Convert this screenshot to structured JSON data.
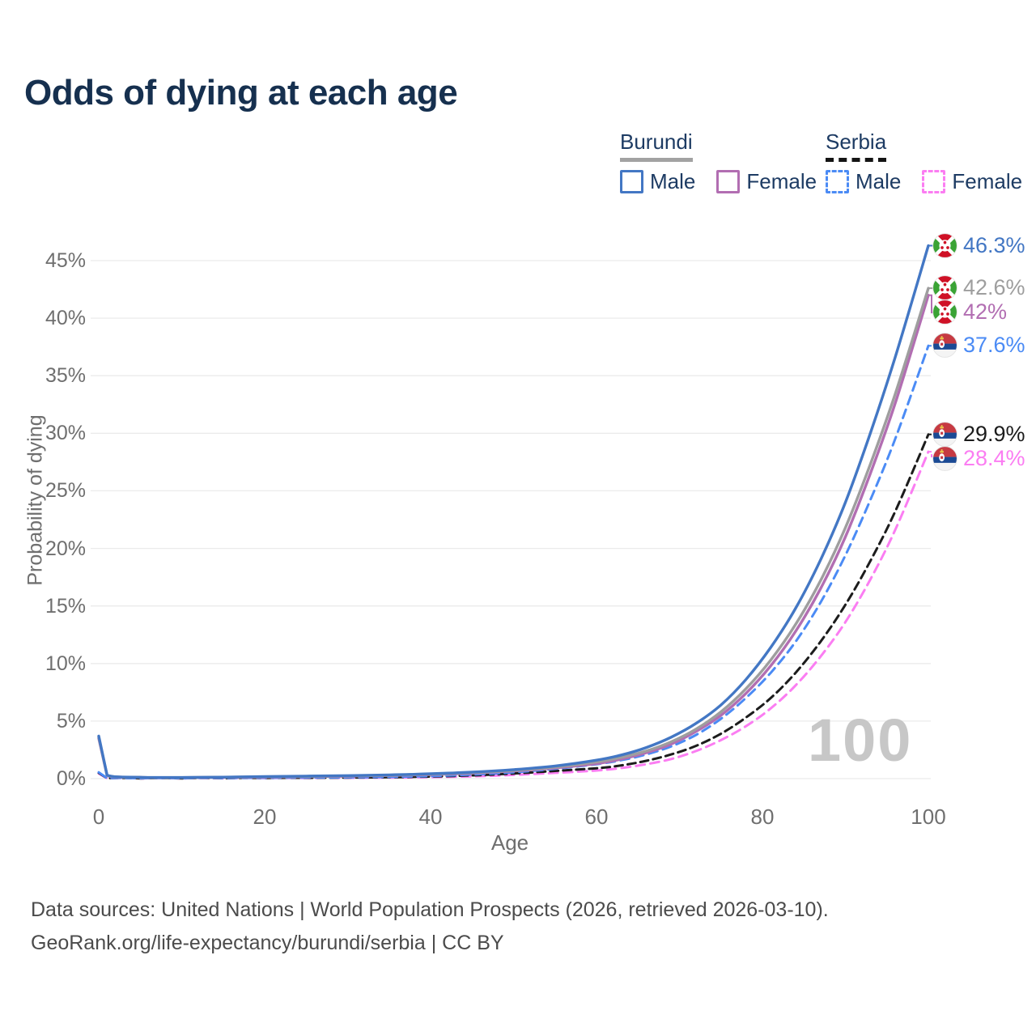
{
  "title": "Odds of dying at each age",
  "legend": {
    "groups": [
      {
        "name": "Burundi",
        "line_style": "solid",
        "line_color": "#a2a2a2",
        "items": [
          {
            "label": "Male",
            "color": "#4377c4",
            "dashed": false
          },
          {
            "label": "Female",
            "color": "#b26eb2",
            "dashed": false
          }
        ]
      },
      {
        "name": "Serbia",
        "line_style": "dashed",
        "line_color": "#141414",
        "items": [
          {
            "label": "Male",
            "color": "#4b8bf5",
            "dashed": true
          },
          {
            "label": "Female",
            "color": "#fb7df2",
            "dashed": true
          }
        ]
      }
    ]
  },
  "chart_data": {
    "type": "line",
    "title": "Odds of dying at each age",
    "xlabel": "Age",
    "ylabel": "Probability of dying",
    "xlim": [
      0,
      100
    ],
    "ylim_percent": [
      0,
      47
    ],
    "x_ticks": [
      0,
      20,
      40,
      60,
      80,
      100
    ],
    "y_ticks_percent": [
      0,
      5,
      10,
      15,
      20,
      25,
      30,
      35,
      40,
      45
    ],
    "grid": "horizontal-only",
    "legend_position": "top-right",
    "watermark": "100",
    "ages": [
      0,
      1,
      5,
      10,
      15,
      20,
      25,
      30,
      35,
      40,
      45,
      50,
      55,
      60,
      63,
      66,
      69,
      72,
      75,
      78,
      81,
      84,
      87,
      90,
      93,
      96,
      100
    ],
    "series": [
      {
        "name": "Burundi Male",
        "slug": "burundi-male",
        "country": "Burundi",
        "sex": "Male",
        "color": "#4377c4",
        "dashed": false,
        "flag": "burundi",
        "end_label": "46.3%",
        "values_percent": [
          3.7,
          0.3,
          0.12,
          0.1,
          0.13,
          0.18,
          0.22,
          0.26,
          0.32,
          0.42,
          0.56,
          0.78,
          1.1,
          1.6,
          2.05,
          2.7,
          3.6,
          4.8,
          6.4,
          8.6,
          11.4,
          14.8,
          19.0,
          24.0,
          30.0,
          36.6,
          46.3
        ]
      },
      {
        "name": "Burundi (both sexes)",
        "slug": "burundi-all",
        "country": "Burundi",
        "sex": "All",
        "color": "#9e9e9e",
        "dashed": false,
        "flag": "burundi",
        "end_label": "42.6%",
        "values_percent": [
          3.6,
          0.28,
          0.11,
          0.09,
          0.12,
          0.16,
          0.19,
          0.23,
          0.29,
          0.38,
          0.51,
          0.71,
          1.0,
          1.45,
          1.85,
          2.4,
          3.2,
          4.3,
          5.8,
          7.8,
          10.3,
          13.4,
          17.2,
          21.8,
          27.3,
          33.4,
          42.6
        ]
      },
      {
        "name": "Burundi Female",
        "slug": "burundi-female",
        "country": "Burundi",
        "sex": "Female",
        "color": "#b26eb2",
        "dashed": false,
        "flag": "burundi",
        "end_label": "42%",
        "values_percent": [
          3.5,
          0.27,
          0.11,
          0.09,
          0.11,
          0.14,
          0.17,
          0.21,
          0.27,
          0.35,
          0.47,
          0.66,
          0.93,
          1.3,
          1.7,
          2.25,
          3.0,
          4.1,
          5.5,
          7.4,
          9.8,
          12.8,
          16.5,
          21.0,
          26.5,
          32.6,
          42.0
        ]
      },
      {
        "name": "Serbia Male",
        "slug": "serbia-male",
        "country": "Serbia",
        "sex": "Male",
        "color": "#4b8bf5",
        "dashed": true,
        "flag": "serbia",
        "end_label": "37.6%",
        "values_percent": [
          0.55,
          0.04,
          0.02,
          0.02,
          0.04,
          0.07,
          0.09,
          0.11,
          0.15,
          0.22,
          0.35,
          0.55,
          0.85,
          1.25,
          1.6,
          2.1,
          2.8,
          3.8,
          5.2,
          7.0,
          9.2,
          11.9,
          15.3,
          19.4,
          24.2,
          29.5,
          37.6
        ]
      },
      {
        "name": "Serbia (both sexes)",
        "slug": "serbia-all",
        "country": "Serbia",
        "sex": "All",
        "color": "#1c1c1c",
        "dashed": true,
        "flag": "serbia",
        "end_label": "29.9%",
        "values_percent": [
          0.5,
          0.035,
          0.015,
          0.015,
          0.03,
          0.05,
          0.07,
          0.09,
          0.12,
          0.18,
          0.28,
          0.44,
          0.67,
          0.9,
          1.15,
          1.55,
          2.1,
          2.85,
          3.9,
          5.3,
          7.0,
          9.2,
          11.9,
          15.1,
          18.9,
          23.2,
          29.9
        ]
      },
      {
        "name": "Serbia Female",
        "slug": "serbia-female",
        "country": "Serbia",
        "sex": "Female",
        "color": "#fb7df2",
        "dashed": true,
        "flag": "serbia",
        "end_label": "28.4%",
        "values_percent": [
          0.45,
          0.03,
          0.01,
          0.01,
          0.02,
          0.04,
          0.05,
          0.07,
          0.09,
          0.13,
          0.2,
          0.32,
          0.5,
          0.7,
          0.92,
          1.25,
          1.7,
          2.4,
          3.35,
          4.55,
          6.1,
          8.1,
          10.6,
          13.6,
          17.3,
          21.6,
          28.4
        ]
      }
    ]
  },
  "footer": {
    "line1": "Data sources: United Nations | World Population Prospects (2026, retrieved 2026-03-10).",
    "line2": "GeoRank.org/life-expectancy/burundi/serbia | CC BY"
  }
}
